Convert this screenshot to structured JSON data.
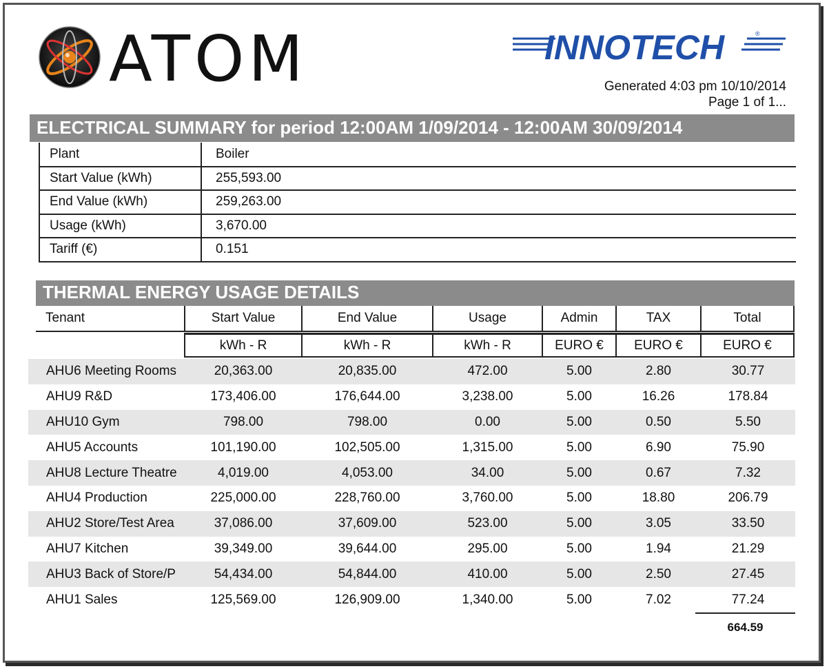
{
  "header": {
    "brand_left": "ATOM",
    "brand_right": "INNOTECH",
    "generated": "Generated  4:03 pm 10/10/2014",
    "page": "Page 1 of 1..."
  },
  "electrical_summary": {
    "title": "ELECTRICAL SUMMARY for period 12:00AM  1/09/2014 - 12:00AM  30/09/2014",
    "rows": [
      {
        "label": "Plant",
        "value": "Boiler"
      },
      {
        "label": "Start Value (kWh)",
        "value": "255,593.00"
      },
      {
        "label": "End Value (kWh)",
        "value": "259,263.00"
      },
      {
        "label": "Usage (kWh)",
        "value": "3,670.00"
      },
      {
        "label": "Tariff (€)",
        "value": "0.151"
      }
    ]
  },
  "thermal": {
    "title": "THERMAL ENERGY USAGE DETAILS",
    "columns": [
      "Tenant",
      "Start Value",
      "End Value",
      "Usage",
      "Admin",
      "TAX",
      "Total"
    ],
    "units": [
      "",
      "kWh - R",
      "kWh - R",
      "kWh - R",
      "EURO €",
      "EURO €",
      "EURO €"
    ],
    "rows": [
      [
        "AHU6 Meeting Rooms",
        "20,363.00",
        "20,835.00",
        "472.00",
        "5.00",
        "2.80",
        "30.77"
      ],
      [
        "AHU9 R&D",
        "173,406.00",
        "176,644.00",
        "3,238.00",
        "5.00",
        "16.26",
        "178.84"
      ],
      [
        "AHU10 Gym",
        "798.00",
        "798.00",
        "0.00",
        "5.00",
        "0.50",
        "5.50"
      ],
      [
        "AHU5 Accounts",
        "101,190.00",
        "102,505.00",
        "1,315.00",
        "5.00",
        "6.90",
        "75.90"
      ],
      [
        "AHU8 Lecture Theatre",
        "4,019.00",
        "4,053.00",
        "34.00",
        "5.00",
        "0.67",
        "7.32"
      ],
      [
        "AHU4 Production",
        "225,000.00",
        "228,760.00",
        "3,760.00",
        "5.00",
        "18.80",
        "206.79"
      ],
      [
        "AHU2 Store/Test Area",
        "37,086.00",
        "37,609.00",
        "523.00",
        "5.00",
        "3.05",
        "33.50"
      ],
      [
        "AHU7 Kitchen",
        "39,349.00",
        "39,644.00",
        "295.00",
        "5.00",
        "1.94",
        "21.29"
      ],
      [
        "AHU3 Back of Store/P",
        "54,434.00",
        "54,844.00",
        "410.00",
        "5.00",
        "2.50",
        "27.45"
      ],
      [
        "AHU1 Sales",
        "125,569.00",
        "126,909.00",
        "1,340.00",
        "5.00",
        "7.02",
        "77.24"
      ]
    ],
    "grand_total": "664.59"
  },
  "colors": {
    "section_bar": "#8b8b8b",
    "row_shade": "#e6e6e6",
    "innotech_blue": "#1f4fa8",
    "atom_orange": "#e8841a"
  }
}
